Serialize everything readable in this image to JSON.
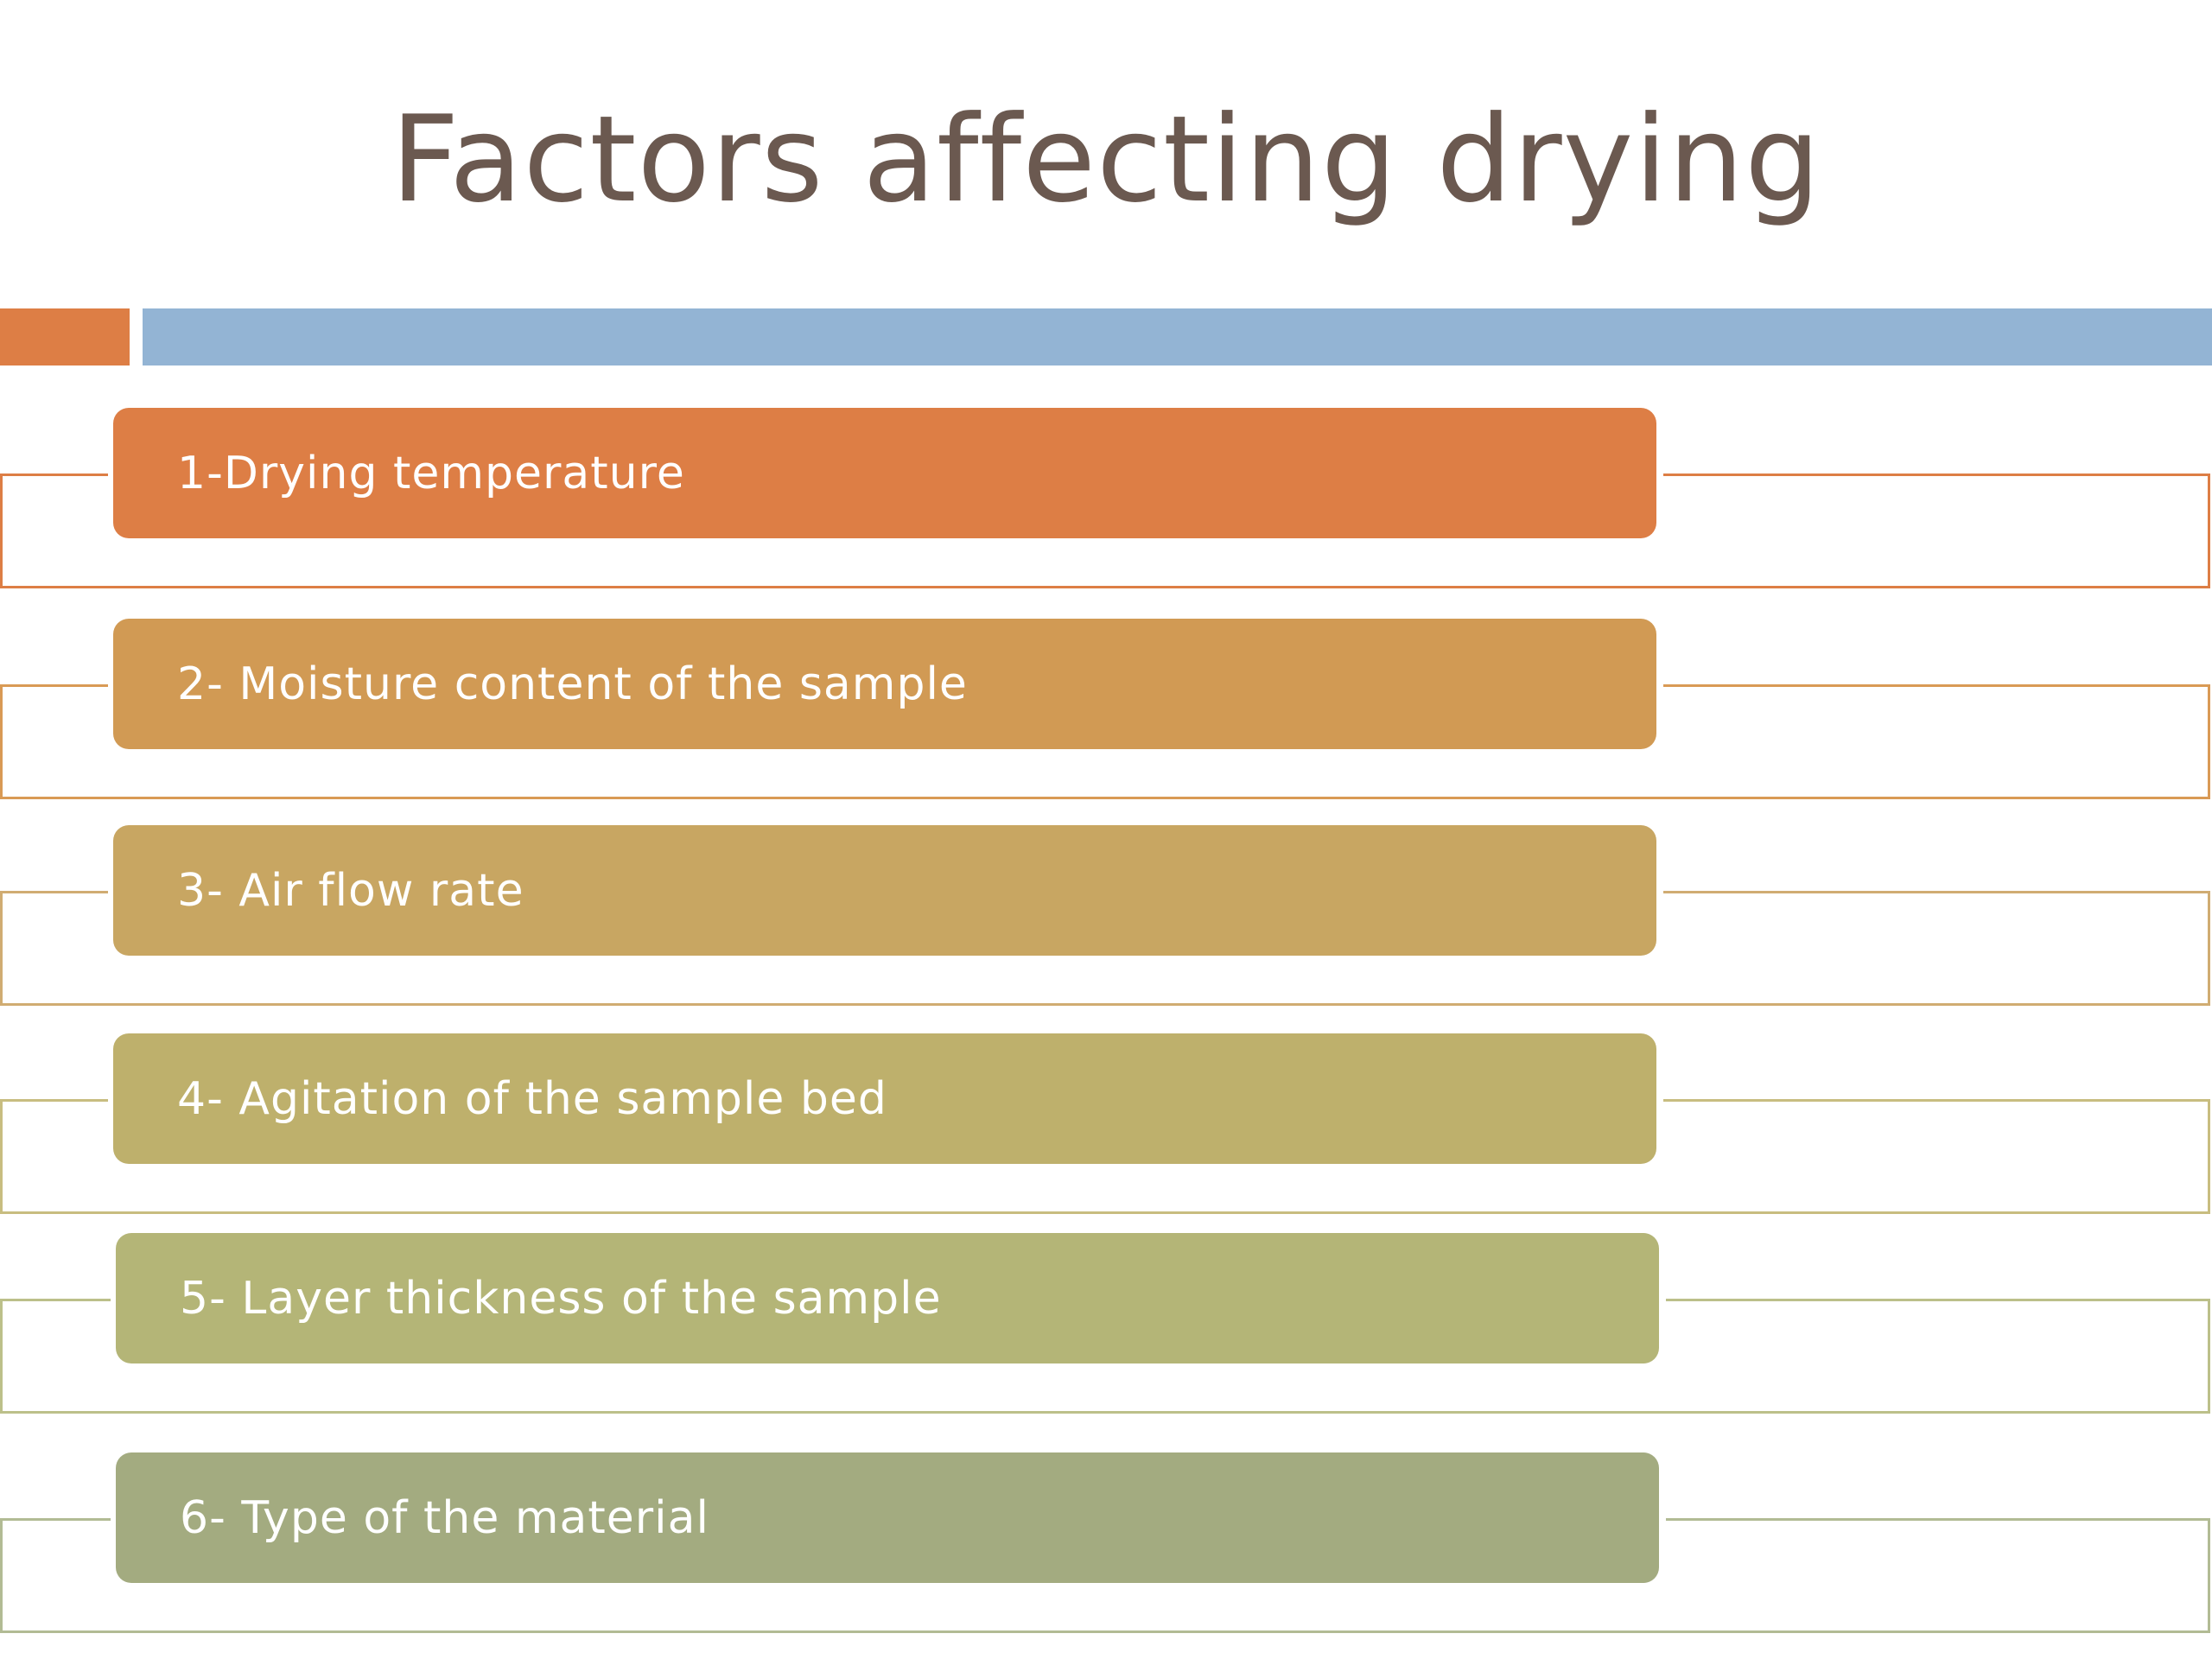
{
  "slide": {
    "title": "Factors affecting drying"
  },
  "colors": {
    "title": "#6b5950",
    "accent_orange": "#dd7e45",
    "accent_blue": "#93b4d4"
  },
  "factors": [
    {
      "label": "1-Drying temperature",
      "color": "#dd7e45",
      "line_color": "#dd7e45"
    },
    {
      "label": "2- Moisture content of the sample",
      "color": "#d19a54",
      "line_color": "#d99a55"
    },
    {
      "label": "3- Air flow rate",
      "color": "#c8a662",
      "line_color": "#d0ac72"
    },
    {
      "label": "4- Agitation of the sample bed",
      "color": "#beb06c",
      "line_color": "#c8bd80"
    },
    {
      "label": "5- Layer thickness of the sample",
      "color": "#b4b577",
      "line_color": "#bcc08a"
    },
    {
      "label": "6- Type of the material",
      "color": "#a3ab80",
      "line_color": "#b2bb94"
    }
  ]
}
